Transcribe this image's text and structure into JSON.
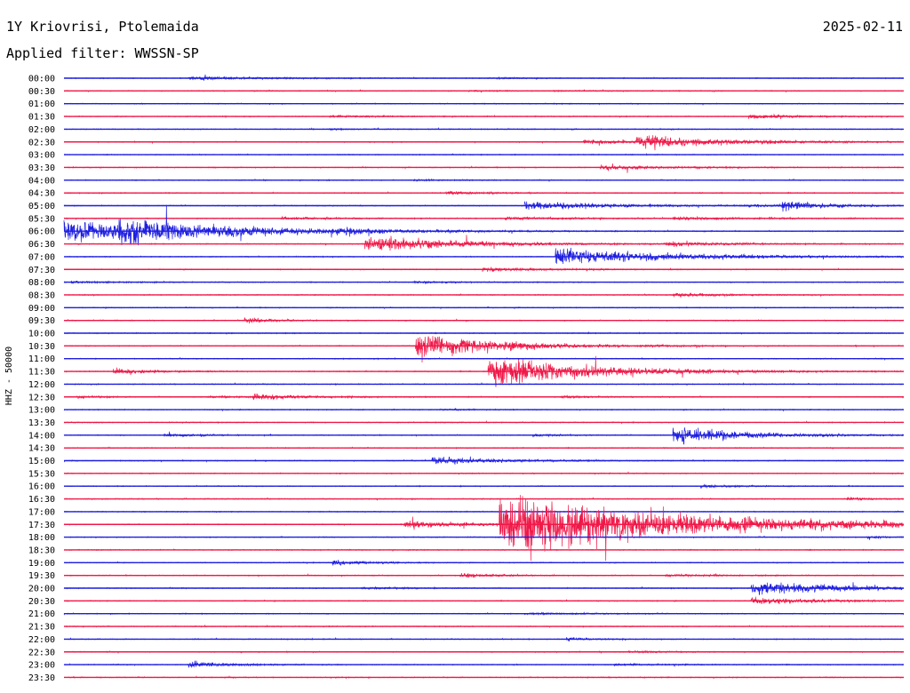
{
  "header": {
    "station": "1Y Kriovrisi, Ptolemaida",
    "date": "2025-02-11",
    "filter": "Applied filter: WWSSN-SP"
  },
  "chart_data": {
    "type": "line",
    "title": "1Y Kriovrisi, Ptolemaida",
    "subtitle": "Applied filter: WWSSN-SP",
    "ylabel": "HHZ - 50000",
    "xlabel": "",
    "date": "2025-02-11",
    "row_labels": [
      "00:00",
      "00:30",
      "01:00",
      "01:30",
      "02:00",
      "02:30",
      "03:00",
      "03:30",
      "04:00",
      "04:30",
      "05:00",
      "05:30",
      "06:00",
      "06:30",
      "07:00",
      "07:30",
      "08:00",
      "08:30",
      "09:00",
      "09:30",
      "10:00",
      "10:30",
      "11:00",
      "11:30",
      "12:00",
      "12:30",
      "13:00",
      "13:30",
      "14:00",
      "14:30",
      "15:00",
      "15:30",
      "16:00",
      "16:30",
      "17:00",
      "17:30",
      "18:00",
      "18:30",
      "19:00",
      "19:30",
      "20:00",
      "20:30",
      "21:00",
      "21:30",
      "22:00",
      "22:30",
      "23:00",
      "23:30"
    ],
    "trace_colors": [
      "#1f1fe0",
      "#f01848"
    ],
    "row_minutes": 30,
    "events": [
      {
        "row": 0,
        "minute": 4.5,
        "amp": 0.25,
        "dur": 2.5
      },
      {
        "row": 0,
        "minute": 15.5,
        "amp": 0.08,
        "dur": 1
      },
      {
        "row": 1,
        "minute": 14.5,
        "amp": 0.06,
        "dur": 1
      },
      {
        "row": 1,
        "minute": 17.5,
        "amp": 0.06,
        "dur": 1.5
      },
      {
        "row": 3,
        "minute": 9.5,
        "amp": 0.15,
        "dur": 1.5
      },
      {
        "row": 3,
        "minute": 24.5,
        "amp": 0.35,
        "dur": 1.5
      },
      {
        "row": 4,
        "minute": 9.5,
        "amp": 0.06,
        "dur": 1
      },
      {
        "row": 5,
        "minute": 18.6,
        "amp": 0.25,
        "dur": 2.5
      },
      {
        "row": 5,
        "minute": 20.5,
        "amp": 0.9,
        "dur": 3
      },
      {
        "row": 7,
        "minute": 19.2,
        "amp": 0.3,
        "dur": 2.5
      },
      {
        "row": 8,
        "minute": 12.5,
        "amp": 0.08,
        "dur": 1.5
      },
      {
        "row": 9,
        "minute": 13.7,
        "amp": 0.2,
        "dur": 1.5
      },
      {
        "row": 10,
        "minute": 16.5,
        "amp": 0.55,
        "dur": 3
      },
      {
        "row": 10,
        "minute": 24.3,
        "amp": 0.15,
        "dur": 2
      },
      {
        "row": 10,
        "minute": 25.7,
        "amp": 0.6,
        "dur": 1.5
      },
      {
        "row": 11,
        "minute": 7.8,
        "amp": 0.18,
        "dur": 2
      },
      {
        "row": 11,
        "minute": 15.8,
        "amp": 0.2,
        "dur": 2.5
      },
      {
        "row": 11,
        "minute": 21.8,
        "amp": 0.18,
        "dur": 3
      },
      {
        "row": 12,
        "minute": 0.0,
        "amp": 1.4,
        "dur": 5
      },
      {
        "row": 12,
        "minute": 2.0,
        "amp": 1.0,
        "dur": 3
      },
      {
        "row": 12,
        "minute": 9.8,
        "amp": 0.3,
        "dur": 1.5
      },
      {
        "row": 13,
        "minute": 10.8,
        "amp": 1.2,
        "dur": 3
      },
      {
        "row": 13,
        "minute": 21.5,
        "amp": 0.3,
        "dur": 2
      },
      {
        "row": 14,
        "minute": 17.6,
        "amp": 1.2,
        "dur": 4
      },
      {
        "row": 15,
        "minute": 15.0,
        "amp": 0.25,
        "dur": 2.5
      },
      {
        "row": 16,
        "minute": 12.5,
        "amp": 0.15,
        "dur": 1.5
      },
      {
        "row": 16,
        "minute": 0.3,
        "amp": 0.15,
        "dur": 1.5
      },
      {
        "row": 17,
        "minute": 21.8,
        "amp": 0.25,
        "dur": 1.5
      },
      {
        "row": 19,
        "minute": 6.5,
        "amp": 0.4,
        "dur": 0.8
      },
      {
        "row": 21,
        "minute": 12.6,
        "amp": 1.9,
        "dur": 2.5
      },
      {
        "row": 21,
        "minute": 15.8,
        "amp": 0.15,
        "dur": 1.5
      },
      {
        "row": 21,
        "minute": 20.9,
        "amp": 0.1,
        "dur": 1
      },
      {
        "row": 23,
        "minute": 1.8,
        "amp": 0.35,
        "dur": 1.5
      },
      {
        "row": 23,
        "minute": 15.2,
        "amp": 2.2,
        "dur": 3.5
      },
      {
        "row": 25,
        "minute": 0.5,
        "amp": 0.15,
        "dur": 1
      },
      {
        "row": 25,
        "minute": 5.2,
        "amp": 0.15,
        "dur": 1
      },
      {
        "row": 25,
        "minute": 6.8,
        "amp": 0.4,
        "dur": 2
      },
      {
        "row": 25,
        "minute": 17.8,
        "amp": 0.15,
        "dur": 1.2
      },
      {
        "row": 26,
        "minute": 13.5,
        "amp": 0.1,
        "dur": 1
      },
      {
        "row": 28,
        "minute": 3.6,
        "amp": 0.2,
        "dur": 1.5
      },
      {
        "row": 28,
        "minute": 16.8,
        "amp": 0.15,
        "dur": 1.2
      },
      {
        "row": 28,
        "minute": 21.8,
        "amp": 1.2,
        "dur": 2.5
      },
      {
        "row": 30,
        "minute": 13.2,
        "amp": 0.5,
        "dur": 2.5
      },
      {
        "row": 32,
        "minute": 22.8,
        "amp": 0.2,
        "dur": 1.5
      },
      {
        "row": 33,
        "minute": 28.0,
        "amp": 0.15,
        "dur": 1
      },
      {
        "row": 35,
        "minute": 12.2,
        "amp": 0.5,
        "dur": 2.5
      },
      {
        "row": 35,
        "minute": 15.6,
        "amp": 4.5,
        "dur": 6
      },
      {
        "row": 36,
        "minute": 28.7,
        "amp": 0.15,
        "dur": 0.8
      },
      {
        "row": 38,
        "minute": 9.6,
        "amp": 0.3,
        "dur": 1.5
      },
      {
        "row": 39,
        "minute": 14.2,
        "amp": 0.25,
        "dur": 1.5
      },
      {
        "row": 39,
        "minute": 21.5,
        "amp": 0.15,
        "dur": 2
      },
      {
        "row": 40,
        "minute": 10.7,
        "amp": 0.15,
        "dur": 1.5
      },
      {
        "row": 40,
        "minute": 24.6,
        "amp": 1.0,
        "dur": 3
      },
      {
        "row": 41,
        "minute": 24.6,
        "amp": 0.45,
        "dur": 2.5
      },
      {
        "row": 42,
        "minute": 16.5,
        "amp": 0.15,
        "dur": 2
      },
      {
        "row": 44,
        "minute": 18.0,
        "amp": 0.25,
        "dur": 0.8
      },
      {
        "row": 45,
        "minute": 20.2,
        "amp": 0.12,
        "dur": 1.5
      },
      {
        "row": 46,
        "minute": 4.5,
        "amp": 0.45,
        "dur": 1.5
      },
      {
        "row": 46,
        "minute": 19.7,
        "amp": 0.12,
        "dur": 2
      }
    ]
  }
}
